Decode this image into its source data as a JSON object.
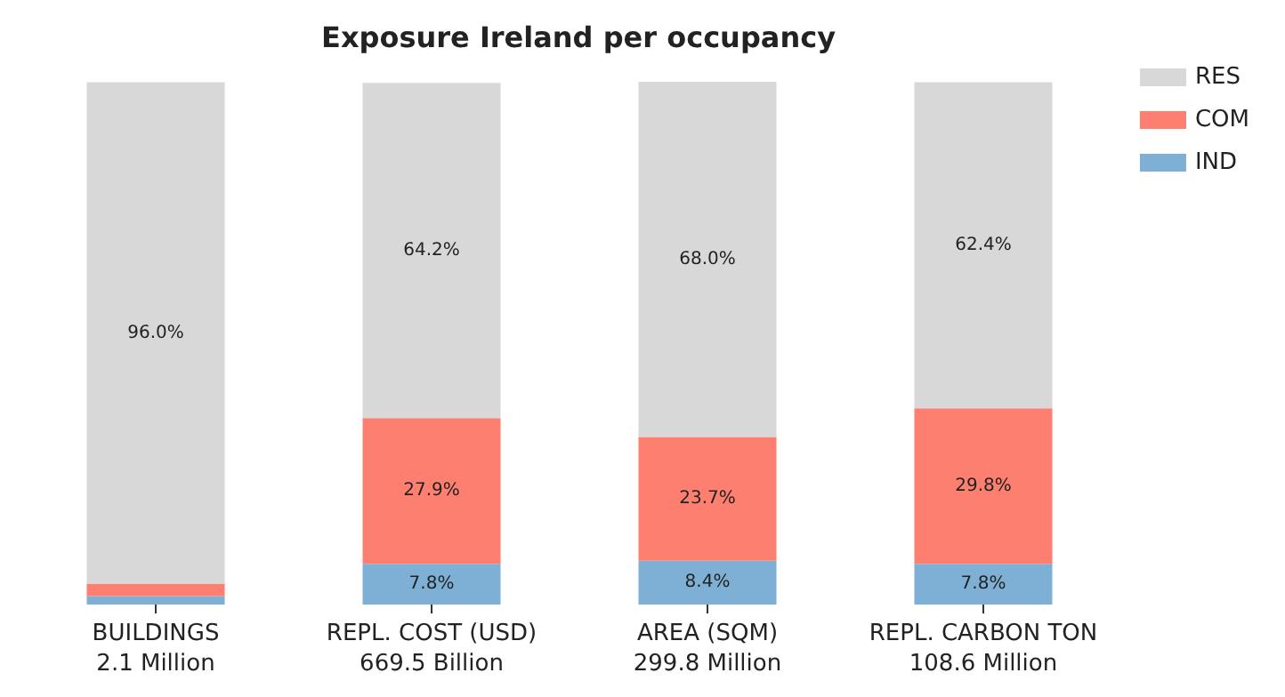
{
  "chart_data": {
    "type": "bar",
    "title": "Exposure Ireland per occupancy",
    "stacked": true,
    "legend": "top right",
    "categories": [
      "BUILDINGS\n2.1 Million",
      "REPL. COST (USD)\n669.5 Billion",
      "AREA (SQM)\n299.8 Million",
      "REPL. CARBON TON\n108.6 Million"
    ],
    "series": [
      {
        "name": "IND",
        "color": "#7eb0d5",
        "values": [
          1.6,
          7.8,
          8.4,
          7.8
        ],
        "value_labels": [
          null,
          "7.8%",
          "8.4%",
          "7.8%"
        ]
      },
      {
        "name": "COM",
        "color": "#fd7f6f",
        "values": [
          2.4,
          27.9,
          23.7,
          29.8
        ],
        "value_labels": [
          null,
          "27.9%",
          "23.7%",
          "29.8%"
        ]
      },
      {
        "name": "RES",
        "color": "#d8d8d8",
        "values": [
          96.0,
          64.2,
          68.0,
          62.4
        ],
        "value_labels": [
          "96.0%",
          "64.2%",
          "68.0%",
          "62.4%"
        ]
      }
    ]
  }
}
